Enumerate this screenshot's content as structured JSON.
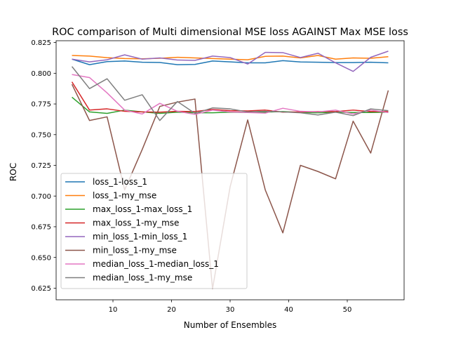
{
  "chart_data": {
    "type": "line",
    "title": "ROC comparison of Multi dimensional MSE loss AGAINST Max MSE loss",
    "xlabel": "Number of Ensembles",
    "ylabel": "ROC",
    "xlim": [
      0.3,
      59.7
    ],
    "ylim": [
      0.6155,
      0.8265
    ],
    "xticks": [
      10,
      20,
      30,
      40,
      50
    ],
    "yticks": [
      0.625,
      0.65,
      0.675,
      0.7,
      0.725,
      0.75,
      0.775,
      0.8,
      0.825
    ],
    "ytick_labels": [
      "0.625",
      "0.650",
      "0.675",
      "0.700",
      "0.725",
      "0.750",
      "0.775",
      "0.800",
      "0.825"
    ],
    "grid": false,
    "legend_position": "lower-left",
    "x": [
      3,
      6,
      9,
      12,
      15,
      18,
      21,
      24,
      27,
      30,
      33,
      36,
      39,
      42,
      45,
      48,
      51,
      54,
      57
    ],
    "series": [
      {
        "name": "loss_1-loss_1",
        "color": "#1f77b4",
        "values": [
          0.8115,
          0.807,
          0.8095,
          0.81,
          0.809,
          0.8088,
          0.807,
          0.8072,
          0.81,
          0.8093,
          0.8085,
          0.8085,
          0.8103,
          0.8092,
          0.809,
          0.8087,
          0.8087,
          0.809,
          0.8085
        ]
      },
      {
        "name": "loss_1-my_mse",
        "color": "#ff7f0e",
        "values": [
          0.8145,
          0.814,
          0.8127,
          0.812,
          0.8118,
          0.8122,
          0.813,
          0.8125,
          0.812,
          0.8115,
          0.811,
          0.8138,
          0.814,
          0.8125,
          0.8145,
          0.8115,
          0.8125,
          0.8122,
          0.8135
        ]
      },
      {
        "name": "max_loss_1-max_loss_1",
        "color": "#2ca02c",
        "values": [
          0.7805,
          0.7685,
          0.7673,
          0.77,
          0.7685,
          0.7673,
          0.7683,
          0.7678,
          0.7678,
          0.7683,
          0.768,
          0.7683,
          0.7688,
          0.768,
          0.7678,
          0.7683,
          0.768,
          0.768,
          0.7683
        ]
      },
      {
        "name": "max_loss_1-my_mse",
        "color": "#d62728",
        "values": [
          0.793,
          0.77,
          0.771,
          0.769,
          0.7685,
          0.7683,
          0.769,
          0.7688,
          0.7705,
          0.7695,
          0.7693,
          0.77,
          0.7683,
          0.7685,
          0.7688,
          0.7688,
          0.77,
          0.7688,
          0.7688
        ]
      },
      {
        "name": "min_loss_1-min_loss_1",
        "color": "#9467bd",
        "values": [
          0.8115,
          0.8093,
          0.811,
          0.815,
          0.8115,
          0.8125,
          0.8108,
          0.8105,
          0.814,
          0.8128,
          0.8075,
          0.817,
          0.8168,
          0.8128,
          0.8163,
          0.8085,
          0.8015,
          0.813,
          0.818
        ]
      },
      {
        "name": "min_loss_1-my_mse",
        "color": "#8c564b",
        "values": [
          0.791,
          0.7615,
          0.7645,
          0.705,
          0.738,
          0.773,
          0.7765,
          0.779,
          0.6245,
          0.7075,
          0.762,
          0.705,
          0.67,
          0.725,
          0.72,
          0.714,
          0.761,
          0.735,
          0.786
        ]
      },
      {
        "name": "median_loss_1-median_loss_1",
        "color": "#e377c2",
        "values": [
          0.799,
          0.7965,
          0.784,
          0.77,
          0.7668,
          0.7755,
          0.769,
          0.7665,
          0.77,
          0.7685,
          0.768,
          0.7675,
          0.7715,
          0.769,
          0.7685,
          0.77,
          0.7668,
          0.77,
          0.768
        ]
      },
      {
        "name": "median_loss_1-my_mse",
        "color": "#7f7f7f",
        "values": [
          0.8055,
          0.7875,
          0.7955,
          0.778,
          0.7825,
          0.7615,
          0.777,
          0.7673,
          0.7718,
          0.771,
          0.7685,
          0.769,
          0.7685,
          0.7678,
          0.766,
          0.7683,
          0.7655,
          0.771,
          0.7695
        ]
      }
    ]
  }
}
